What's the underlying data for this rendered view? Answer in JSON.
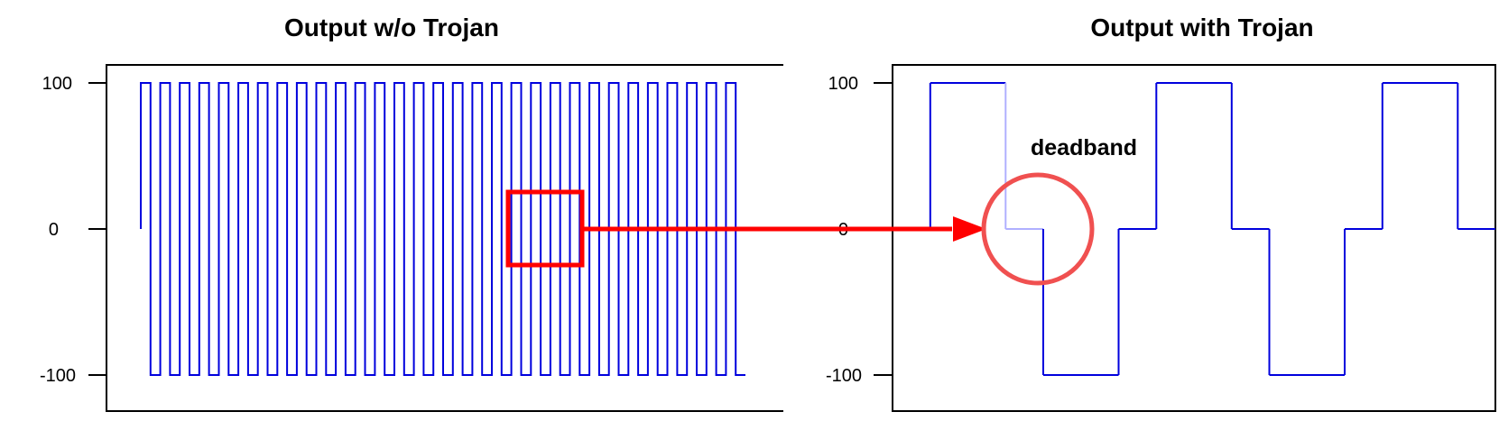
{
  "chart_data": [
    {
      "type": "line",
      "title": "Output w/o Trojan",
      "xlabel": "",
      "ylabel": "",
      "ylim": [
        -120,
        120
      ],
      "yticks": [
        100,
        0,
        -100
      ],
      "ytick_labels": [
        "100",
        "0",
        "-100"
      ],
      "grid": false,
      "legend": "none",
      "series": [
        {
          "style": "square-wave",
          "high": 100,
          "low": -100,
          "periods": 31,
          "starts_at": 0,
          "deadband": false
        }
      ]
    },
    {
      "type": "line",
      "title": "Output with Trojan",
      "xlabel": "",
      "ylabel": "",
      "ylim": [
        -120,
        120
      ],
      "yticks": [
        100,
        0,
        -100
      ],
      "ytick_labels": [
        "100",
        "0",
        "-100"
      ],
      "grid": false,
      "legend": "none",
      "series": [
        {
          "style": "square-wave-with-deadband",
          "levels": [
            0,
            100,
            0,
            -100,
            0,
            100,
            0,
            -100,
            0,
            100,
            0
          ],
          "deadband": true
        }
      ]
    }
  ],
  "annotations": {
    "deadband_label": "deadband",
    "zoom_box_color": "#ff0000",
    "arrow_color": "#ff0000",
    "circle_color": "#f05050"
  },
  "colors": {
    "series": "#0000dd",
    "series_faded": "#b0b0ff",
    "frame": "#000000"
  }
}
